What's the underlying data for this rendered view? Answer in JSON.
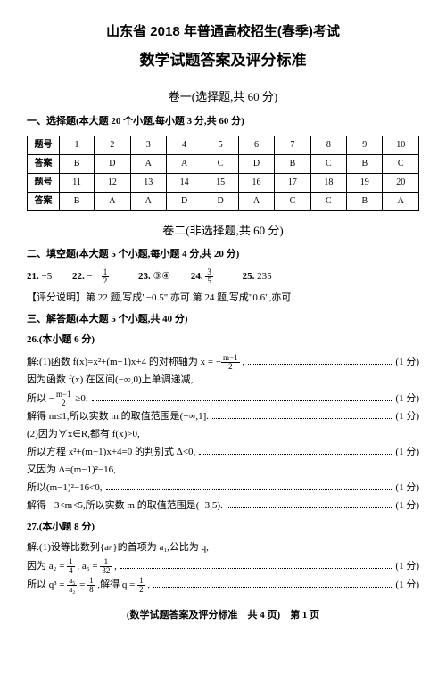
{
  "title_line1": "山东省 2018 年普通高校招生(春季)考试",
  "title_line2": "数学试题答案及评分标准",
  "section1_title": "卷一(选择题,共 60 分)",
  "mc_heading": "一、选择题(本大题 20 个小题,每小题 3 分,共 60 分)",
  "table": {
    "label_q": "题号",
    "label_a": "答案",
    "row1_nums": [
      "1",
      "2",
      "3",
      "4",
      "5",
      "6",
      "7",
      "8",
      "9",
      "10"
    ],
    "row1_ans": [
      "B",
      "D",
      "A",
      "A",
      "C",
      "D",
      "B",
      "C",
      "B",
      "C"
    ],
    "row2_nums": [
      "11",
      "12",
      "13",
      "14",
      "15",
      "16",
      "17",
      "18",
      "19",
      "20"
    ],
    "row2_ans": [
      "B",
      "A",
      "A",
      "D",
      "D",
      "A",
      "C",
      "C",
      "B",
      "A"
    ]
  },
  "section2_title": "卷二(非选择题,共 60 分)",
  "fill_heading": "二、填空题(本大题 5 个小题,每小题 4 分,共 20 分)",
  "fill": {
    "q21_label": "21.",
    "q21_val": "−5",
    "q22_label": "22.",
    "q22_neg": "−",
    "q22_num": "1",
    "q22_den": "2",
    "q23_label": "23.",
    "q23_val": "③④",
    "q24_label": "24.",
    "q24_num": "3",
    "q24_den": "5",
    "q25_label": "25.",
    "q25_val": "235"
  },
  "note_text": "【评分说明】第 22 题,写成\"−0.5\",亦可.第 24 题,写成\"0.6\",亦可.",
  "solve_heading": "三、解答题(本大题 5 个小题,共 40 分)",
  "q26_label": "26.(本小题 6 分)",
  "lines": {
    "l1_txt_a": "解:(1)函数 f(x)=x²+(m−1)x+4 的对称轴为 x = −",
    "l1_num": "m−1",
    "l1_den": "2",
    "l1_txt_b": " ,",
    "l1_pts": "(1 分)",
    "l2_txt": "因为函数 f(x) 在区间(−∞,0)上单调递减,",
    "l3_txt_a": "所以 −",
    "l3_num": "m−1",
    "l3_den": "2",
    "l3_txt_b": " ≥0.",
    "l3_pts": "(1 分)",
    "l4_txt": "解得 m≤1,所以实数 m 的取值范围是(−∞,1].",
    "l4_pts": "(1 分)",
    "l5_txt": "(2)因为∀x∈R,都有 f(x)>0,",
    "l6_txt": "所以方程 x²+(m−1)x+4=0 的判别式 Δ<0,",
    "l6_pts": "(1 分)",
    "l7_txt": "又因为 Δ=(m−1)²−16,",
    "l8_txt": "所以(m−1)²−16<0,",
    "l8_pts": "(1 分)",
    "l9_txt": "解得 −3<m<5,所以实数 m 的取值范围是(−3,5).",
    "l9_pts": "(1 分)"
  },
  "q27_label": "27.(本小题 8 分)",
  "q27": {
    "l1_txt": "解:(1)设等比数列{aₙ}的首项为 a₁,公比为 q,",
    "l2_a": "因为 a₂ = ",
    "l2_n1": "1",
    "l2_d1": "4",
    "l2_b": " , a₅ = ",
    "l2_n2": "1",
    "l2_d2": "32",
    "l2_c": " ,",
    "l2_pts": "(1 分)",
    "l3_a": "所以 q³ = ",
    "l3_n1": "a₅",
    "l3_d1": "a₂",
    "l3_b": " = ",
    "l3_n2": "1",
    "l3_d2": "8",
    "l3_c": " ,解得 q = ",
    "l3_n3": "1",
    "l3_d3": "2",
    "l3_d": " ,",
    "l3_pts": "(1 分)"
  },
  "footer": "(数学试题答案及评分标准　共 4 页)　第 1 页"
}
